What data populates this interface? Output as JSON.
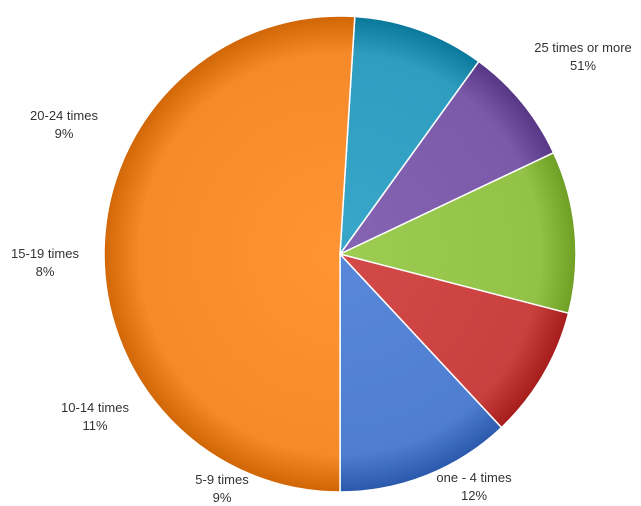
{
  "chart_data": {
    "type": "pie",
    "slices": [
      {
        "label": "one - 4 times",
        "value": 12,
        "display": "12%",
        "color": "#4f7ed0"
      },
      {
        "label": "5-9 times",
        "value": 9,
        "display": "9%",
        "color": "#c9403f"
      },
      {
        "label": "10-14 times",
        "value": 11,
        "display": "11%",
        "color": "#92c247"
      },
      {
        "label": "15-19 times",
        "value": 8,
        "display": "8%",
        "color": "#7b5aa9"
      },
      {
        "label": "20-24 times",
        "value": 9,
        "display": "9%",
        "color": "#2f9dc0"
      },
      {
        "label": "25 times or more",
        "value": 51,
        "display": "51%",
        "color": "#f48a2a"
      }
    ],
    "title": "",
    "legend": "none"
  }
}
